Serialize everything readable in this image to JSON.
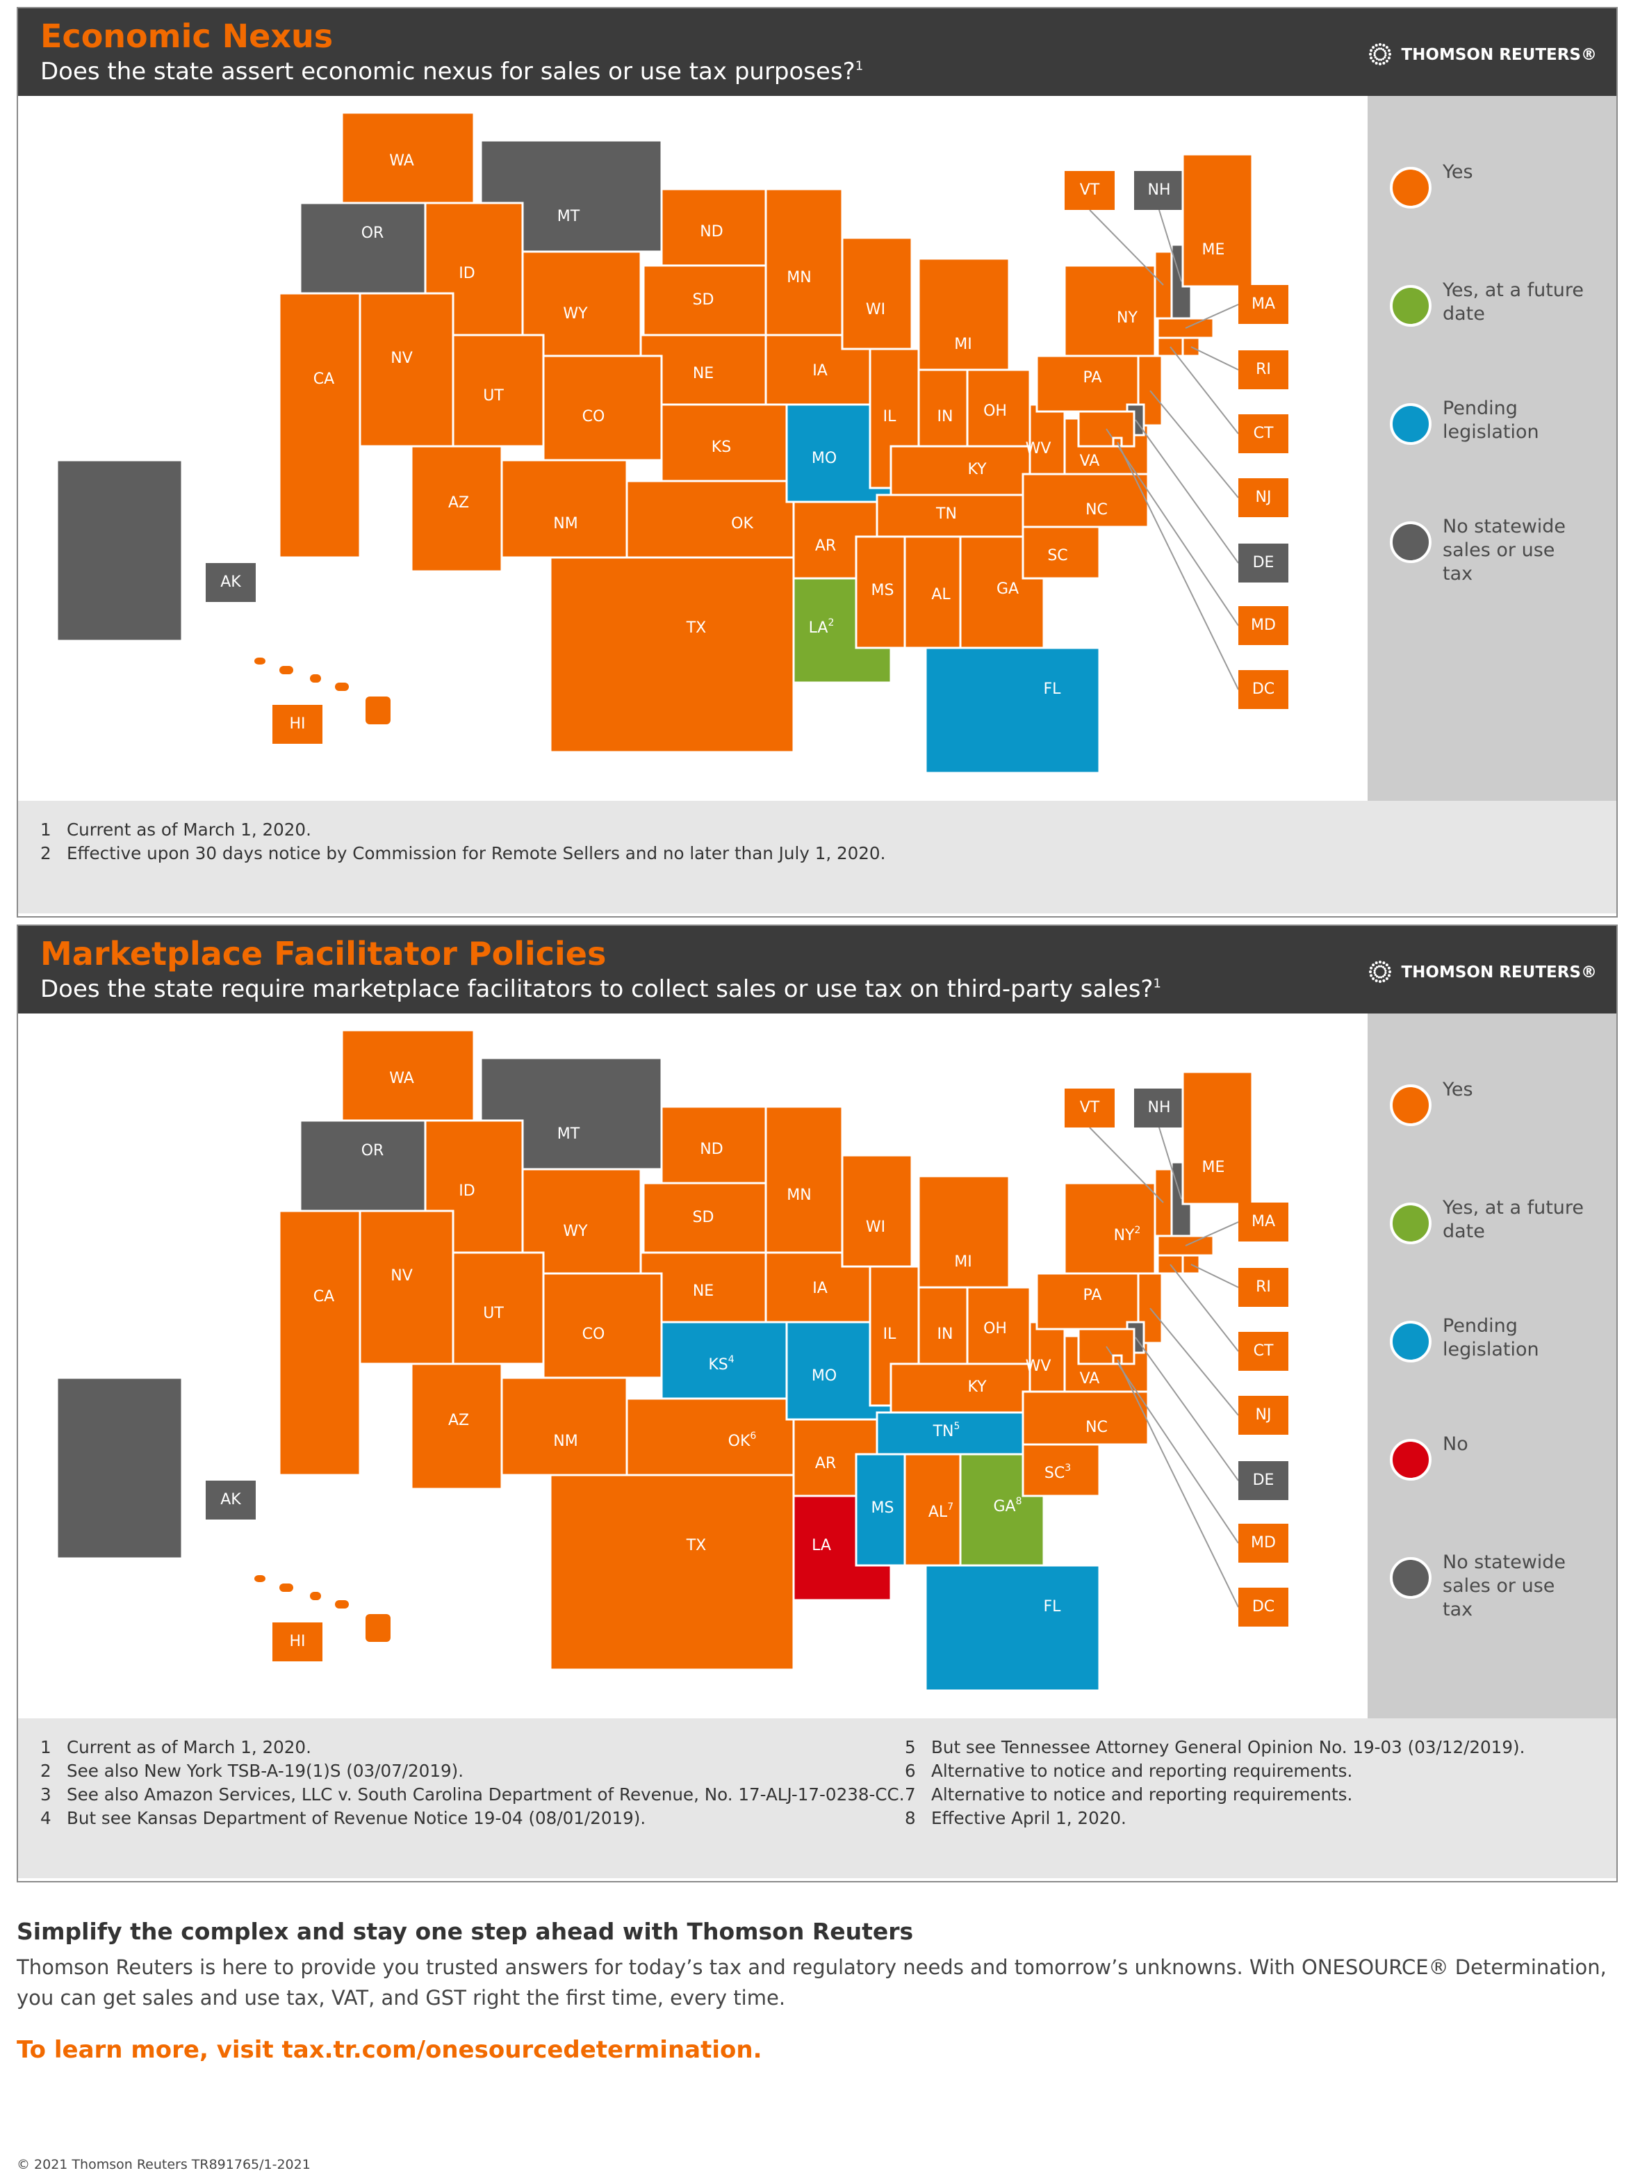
{
  "maps": [
    {
      "title": "Economic Nexus",
      "subtitle": "Does the state assert economic nexus for sales or use tax purposes?",
      "subtitle_note": "1",
      "logo": "THOMSON REUTERS®",
      "legend": [
        {
          "label": "Yes",
          "color": "#f26a00"
        },
        {
          "label": "Yes, at a future date",
          "color": "#7aab2f"
        },
        {
          "label": "Pending legislation",
          "color": "#0a96c8"
        },
        {
          "label": "No statewide sales or use tax",
          "color": "#5e5e5e"
        }
      ],
      "states": [
        {
          "label": "WA",
          "legend": 0
        },
        {
          "label": "OR",
          "legend": 3
        },
        {
          "label": "MT",
          "legend": 3
        },
        {
          "label": "ID",
          "legend": 0
        },
        {
          "label": "WY",
          "legend": 0
        },
        {
          "label": "ND",
          "legend": 0
        },
        {
          "label": "SD",
          "legend": 0
        },
        {
          "label": "NE",
          "legend": 0
        },
        {
          "label": "KS",
          "legend": 0
        },
        {
          "label": "OK",
          "legend": 0
        },
        {
          "label": "TX",
          "legend": 0
        },
        {
          "label": "NM",
          "legend": 0
        },
        {
          "label": "CO",
          "legend": 0
        },
        {
          "label": "UT",
          "legend": 0
        },
        {
          "label": "AZ",
          "legend": 0
        },
        {
          "label": "NV",
          "legend": 0
        },
        {
          "label": "CA",
          "legend": 0
        },
        {
          "label": "MN",
          "legend": 0
        },
        {
          "label": "IA",
          "legend": 0
        },
        {
          "label": "MO",
          "legend": 2
        },
        {
          "label": "AR",
          "legend": 0
        },
        {
          "label": "LA",
          "note": "2",
          "legend": 1
        },
        {
          "label": "WI",
          "legend": 0
        },
        {
          "label": "IL",
          "legend": 0
        },
        {
          "label": "MI",
          "legend": 0
        },
        {
          "label": "IN",
          "legend": 0
        },
        {
          "label": "OH",
          "legend": 0
        },
        {
          "label": "KY",
          "legend": 0
        },
        {
          "label": "TN",
          "legend": 0
        },
        {
          "label": "MS",
          "legend": 0
        },
        {
          "label": "AL",
          "legend": 0
        },
        {
          "label": "GA",
          "legend": 0
        },
        {
          "label": "FL",
          "legend": 2
        },
        {
          "label": "SC",
          "legend": 0
        },
        {
          "label": "NC",
          "legend": 0
        },
        {
          "label": "VA",
          "legend": 0
        },
        {
          "label": "WV",
          "legend": 0
        },
        {
          "label": "PA",
          "legend": 0
        },
        {
          "label": "NY",
          "legend": 0
        },
        {
          "label": "VT",
          "legend": 0
        },
        {
          "label": "NH",
          "legend": 3
        },
        {
          "label": "ME",
          "legend": 0
        },
        {
          "label": "MA",
          "legend": 0
        },
        {
          "label": "RI",
          "legend": 0
        },
        {
          "label": "CT",
          "legend": 0
        },
        {
          "label": "NJ",
          "legend": 0
        },
        {
          "label": "DE",
          "legend": 3
        },
        {
          "label": "MD",
          "legend": 0
        },
        {
          "label": "DC",
          "legend": 0
        },
        {
          "label": "AK",
          "legend": 3
        },
        {
          "label": "HI",
          "legend": 0
        }
      ],
      "footnotes": [
        {
          "num": "1",
          "text": "Current as of March 1, 2020."
        },
        {
          "num": "2",
          "text": "Effective upon 30 days notice by Commission for Remote Sellers and no later than July 1, 2020."
        }
      ]
    },
    {
      "title": "Marketplace Facilitator Policies",
      "subtitle": "Does the state require marketplace facilitators to collect sales or use tax on third-party sales?",
      "subtitle_note": "1",
      "logo": "THOMSON REUTERS®",
      "legend": [
        {
          "label": "Yes",
          "color": "#f26a00"
        },
        {
          "label": "Yes, at a future date",
          "color": "#7aab2f"
        },
        {
          "label": "Pending legislation",
          "color": "#0a96c8"
        },
        {
          "label": "No",
          "color": "#d7000f"
        },
        {
          "label": "No statewide sales or use tax",
          "color": "#5e5e5e"
        }
      ],
      "states": [
        {
          "label": "WA",
          "legend": 0
        },
        {
          "label": "OR",
          "legend": 4
        },
        {
          "label": "MT",
          "legend": 4
        },
        {
          "label": "ID",
          "legend": 0
        },
        {
          "label": "WY",
          "legend": 0
        },
        {
          "label": "ND",
          "legend": 0
        },
        {
          "label": "SD",
          "legend": 0
        },
        {
          "label": "NE",
          "legend": 0
        },
        {
          "label": "KS",
          "note": "4",
          "legend": 2
        },
        {
          "label": "OK",
          "note": "6",
          "legend": 0
        },
        {
          "label": "TX",
          "legend": 0
        },
        {
          "label": "NM",
          "legend": 0
        },
        {
          "label": "CO",
          "legend": 0
        },
        {
          "label": "UT",
          "legend": 0
        },
        {
          "label": "AZ",
          "legend": 0
        },
        {
          "label": "NV",
          "legend": 0
        },
        {
          "label": "CA",
          "legend": 0
        },
        {
          "label": "MN",
          "legend": 0
        },
        {
          "label": "IA",
          "legend": 0
        },
        {
          "label": "MO",
          "legend": 2
        },
        {
          "label": "AR",
          "legend": 0
        },
        {
          "label": "LA",
          "legend": 3
        },
        {
          "label": "WI",
          "legend": 0
        },
        {
          "label": "IL",
          "legend": 0
        },
        {
          "label": "MI",
          "legend": 0
        },
        {
          "label": "IN",
          "legend": 0
        },
        {
          "label": "OH",
          "legend": 0
        },
        {
          "label": "KY",
          "legend": 0
        },
        {
          "label": "TN",
          "note": "5",
          "legend": 2
        },
        {
          "label": "MS",
          "legend": 2
        },
        {
          "label": "AL",
          "note": "7",
          "legend": 0
        },
        {
          "label": "GA",
          "note": "8",
          "legend": 1
        },
        {
          "label": "FL",
          "legend": 2
        },
        {
          "label": "SC",
          "note": "3",
          "legend": 0
        },
        {
          "label": "NC",
          "legend": 0
        },
        {
          "label": "VA",
          "legend": 0
        },
        {
          "label": "WV",
          "legend": 0
        },
        {
          "label": "PA",
          "legend": 0
        },
        {
          "label": "NY",
          "note": "2",
          "legend": 0
        },
        {
          "label": "VT",
          "legend": 0
        },
        {
          "label": "NH",
          "legend": 4
        },
        {
          "label": "ME",
          "legend": 0
        },
        {
          "label": "MA",
          "legend": 0
        },
        {
          "label": "RI",
          "legend": 0
        },
        {
          "label": "CT",
          "legend": 0
        },
        {
          "label": "NJ",
          "legend": 0
        },
        {
          "label": "DE",
          "legend": 4
        },
        {
          "label": "MD",
          "legend": 0
        },
        {
          "label": "DC",
          "legend": 0
        },
        {
          "label": "AK",
          "legend": 4
        },
        {
          "label": "HI",
          "legend": 0
        }
      ],
      "footnotes": [
        {
          "num": "1",
          "text": "Current as of March 1, 2020."
        },
        {
          "num": "2",
          "text": "See also New York TSB-A-19(1)S (03/07/2019)."
        },
        {
          "num": "3",
          "text": "See also Amazon Services, LLC v. South Carolina Department of Revenue, No. 17-ALJ-17-0238-CC."
        },
        {
          "num": "4",
          "text": "But see Kansas Department of Revenue Notice 19-04 (08/01/2019)."
        },
        {
          "num": "5",
          "text": "But see Tennessee Attorney General Opinion No. 19-03 (03/12/2019)."
        },
        {
          "num": "6",
          "text": "Alternative to notice and reporting requirements."
        },
        {
          "num": "7",
          "text": "Alternative to notice and reporting requirements."
        },
        {
          "num": "8",
          "text": "Effective April 1, 2020."
        }
      ]
    }
  ],
  "footer": {
    "heading": "Simplify the complex and stay one step ahead with Thomson Reuters",
    "body": "Thomson Reuters is here to provide you trusted answers for today’s tax and regulatory needs and tomorrow’s unknowns. With ONESOURCE® Determination, you can get sales and use tax, VAT, and GST right the first time, every time.",
    "link": "To learn more, visit tax.tr.com/onesourcedetermination.",
    "copyright": "© 2021 Thomson Reuters  TR891765/1-2021"
  }
}
